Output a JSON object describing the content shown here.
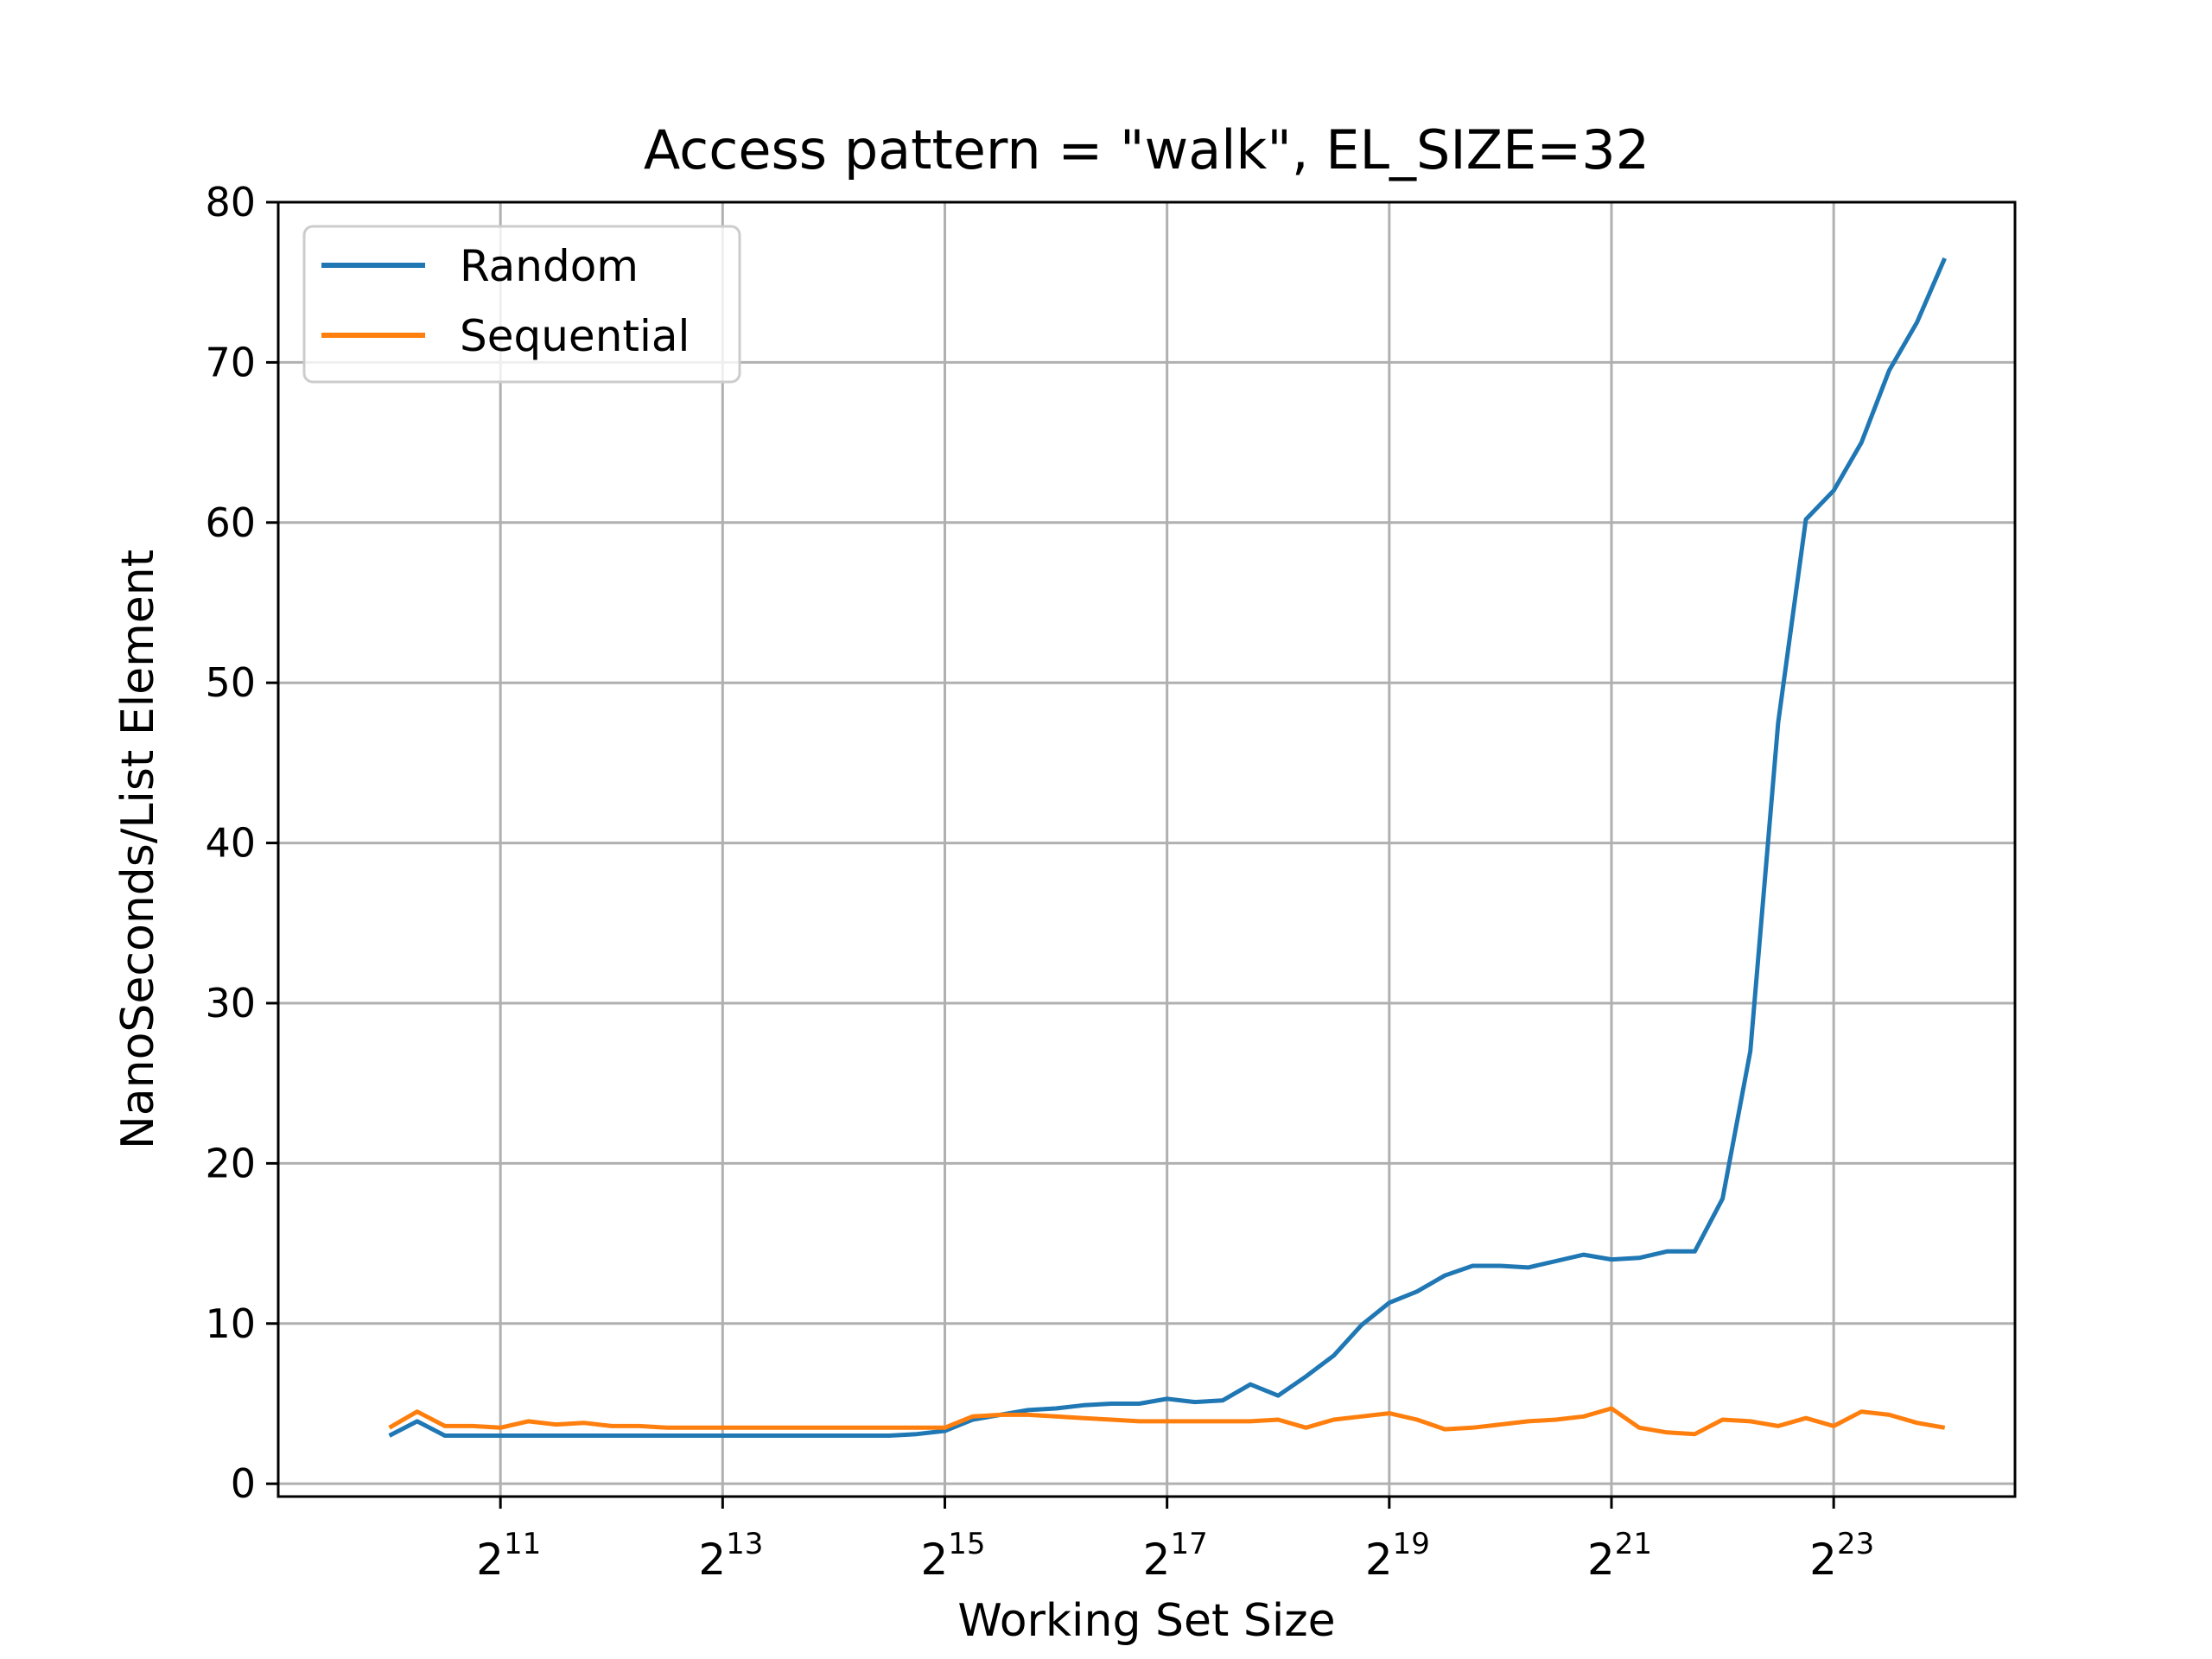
{
  "chart_data": {
    "type": "line",
    "title": "Access pattern = \"walk\", EL_SIZE=32",
    "xlabel": "Working Set Size",
    "ylabel": "NanoSeconds/List Element",
    "xscale": "log2",
    "xlim": [
      512,
      26000000
    ],
    "ylim": [
      -0.8,
      80
    ],
    "yticks": [
      0,
      10,
      20,
      30,
      40,
      50,
      60,
      70,
      80
    ],
    "xticks": [
      {
        "base": "2",
        "exp": "11",
        "value": 2048
      },
      {
        "base": "2",
        "exp": "13",
        "value": 8192
      },
      {
        "base": "2",
        "exp": "15",
        "value": 32768
      },
      {
        "base": "2",
        "exp": "17",
        "value": 131072
      },
      {
        "base": "2",
        "exp": "19",
        "value": 524288
      },
      {
        "base": "2",
        "exp": "21",
        "value": 2097152
      },
      {
        "base": "2",
        "exp": "23",
        "value": 8388608
      }
    ],
    "grid": true,
    "legend_position": "upper-left",
    "series": [
      {
        "name": "Random",
        "color": "#1f77b4",
        "x": [
          1024,
          1218,
          1448,
          1722,
          2048,
          2435,
          2896,
          3444,
          4096,
          4871,
          5793,
          6889,
          8192,
          9742,
          11585,
          13777,
          16384,
          19484,
          23170,
          27554,
          32768,
          38968,
          46341,
          55109,
          65536,
          77936,
          92682,
          110218,
          131072,
          155872,
          185364,
          220436,
          262144,
          311744,
          370728,
          440872,
          524288,
          623487,
          741455,
          881744,
          1048576,
          1246974,
          1482910,
          1763488,
          2097152,
          2493948,
          2965821,
          3526975,
          4194304,
          4987896,
          5931642,
          7053950,
          8388608,
          9975792,
          11863283,
          14107900,
          16777216
        ],
        "y": [
          3.0,
          3.9,
          3.0,
          3.0,
          3.0,
          3.0,
          3.0,
          3.0,
          3.0,
          3.0,
          3.0,
          3.0,
          3.0,
          3.0,
          3.0,
          3.0,
          3.0,
          3.0,
          3.0,
          3.1,
          3.3,
          4.0,
          4.3,
          4.6,
          4.7,
          4.9,
          5.0,
          5.0,
          5.3,
          5.1,
          5.2,
          6.2,
          5.5,
          6.7,
          8.0,
          9.9,
          11.3,
          12.0,
          13.0,
          13.6,
          13.6,
          13.5,
          13.9,
          14.3,
          14.0,
          14.1,
          14.5,
          14.5,
          17.8,
          27.0,
          47.5,
          60.2,
          62.0,
          65.0,
          69.5,
          72.5,
          76.5
        ]
      },
      {
        "name": "Sequential",
        "color": "#ff7f0e",
        "x": [
          1024,
          1218,
          1448,
          1722,
          2048,
          2435,
          2896,
          3444,
          4096,
          4871,
          5793,
          6889,
          8192,
          9742,
          11585,
          13777,
          16384,
          19484,
          23170,
          27554,
          32768,
          38968,
          46341,
          55109,
          65536,
          77936,
          92682,
          110218,
          131072,
          155872,
          185364,
          220436,
          262144,
          311744,
          370728,
          440872,
          524288,
          623487,
          741455,
          881744,
          1048576,
          1246974,
          1482910,
          1763488,
          2097152,
          2493948,
          2965821,
          3526975,
          4194304,
          4987896,
          5931642,
          7053950,
          8388608,
          9975792,
          11863283,
          14107900,
          16777216
        ],
        "y": [
          3.5,
          4.5,
          3.6,
          3.6,
          3.5,
          3.9,
          3.7,
          3.8,
          3.6,
          3.6,
          3.5,
          3.5,
          3.5,
          3.5,
          3.5,
          3.5,
          3.5,
          3.5,
          3.5,
          3.5,
          3.5,
          4.2,
          4.3,
          4.3,
          4.2,
          4.1,
          4.0,
          3.9,
          3.9,
          3.9,
          3.9,
          3.9,
          4.0,
          3.5,
          4.0,
          4.2,
          4.4,
          4.0,
          3.4,
          3.5,
          3.7,
          3.9,
          4.0,
          4.2,
          4.7,
          3.5,
          3.2,
          3.1,
          4.0,
          3.9,
          3.6,
          4.1,
          3.6,
          4.5,
          4.3,
          3.8,
          3.5
        ]
      }
    ]
  }
}
